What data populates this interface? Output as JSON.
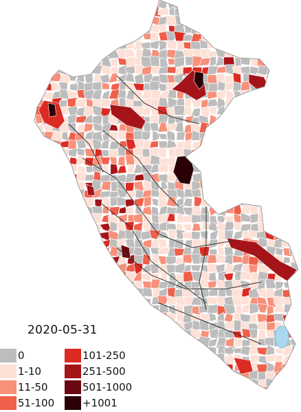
{
  "map": {
    "date": "2020-05-31",
    "colors": {
      "background": "#ffffff",
      "border": "#ffffff",
      "region_border": "#333333",
      "lake": "#a9d8ee"
    },
    "legend": [
      {
        "label": "0",
        "color": "#bdbdbd"
      },
      {
        "label": "1-10",
        "color": "#fde0d6"
      },
      {
        "label": "11-50",
        "color": "#f8907a"
      },
      {
        "label": "51-100",
        "color": "#ef5f4a"
      },
      {
        "label": "101-250",
        "color": "#db2b23"
      },
      {
        "label": "251-500",
        "color": "#a51419"
      },
      {
        "label": "501-1000",
        "color": "#6b0710"
      },
      {
        "label": "+1001",
        "color": "#2b0006"
      }
    ]
  }
}
